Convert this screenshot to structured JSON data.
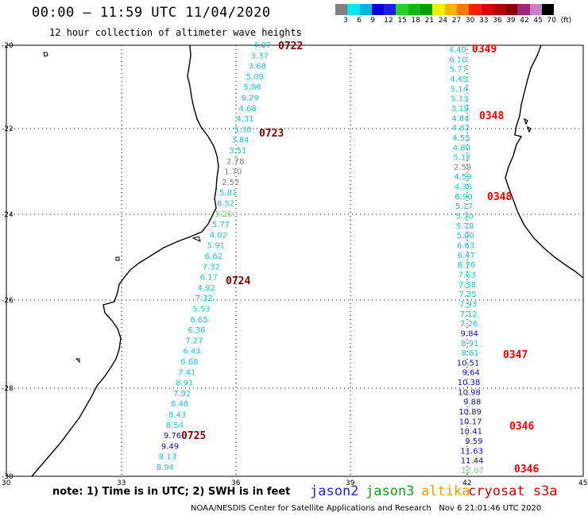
{
  "header": {
    "title": "00:00 — 11:59 UTC 11/04/2020",
    "subtitle": "12 hour collection of altimeter wave heights"
  },
  "color_scale": {
    "colors": [
      "#808080",
      "#00e5ff",
      "#00b4e6",
      "#0000e0",
      "#1e1ee6",
      "#22d322",
      "#12b812",
      "#00a000",
      "#f0f000",
      "#ffb400",
      "#ff7800",
      "#ff1e00",
      "#e00000",
      "#b40000",
      "#8c0000",
      "#a02878",
      "#c880c8",
      "#000000"
    ],
    "labels": [
      "3",
      "6",
      "9",
      "12",
      "15",
      "18",
      "21",
      "24",
      "27",
      "30",
      "33",
      "36",
      "39",
      "42",
      "45",
      "70",
      "(ft)"
    ]
  },
  "axes": {
    "lat_labels": [
      "-20",
      "-22",
      "-24",
      "-26",
      "-28",
      "-30"
    ],
    "lon_labels": [
      "30",
      "33",
      "36",
      "39",
      "42",
      "45"
    ]
  },
  "tracks": [
    {
      "values": [
        {
          "text": "4.07",
          "color": "#17c9e6"
        },
        {
          "text": "3.37",
          "color": "#17c9e6"
        },
        {
          "text": "3.68",
          "color": "#17c9e6"
        },
        {
          "text": "5.09",
          "color": "#17c9e6"
        },
        {
          "text": "5.86",
          "color": "#17c9e6"
        },
        {
          "text": "6.29",
          "color": "#17c9e6"
        },
        {
          "text": "4.68",
          "color": "#17c9e6"
        },
        {
          "text": "4.31",
          "color": "#17c9e6"
        },
        {
          "text": "5.30",
          "color": "#17c9e6"
        },
        {
          "text": "3.84",
          "color": "#17c9e6"
        },
        {
          "text": "3.51",
          "color": "#17c9e6"
        },
        {
          "text": "2.78",
          "color": "#808080"
        },
        {
          "text": "1.70",
          "color": "#808080"
        },
        {
          "text": "2.52",
          "color": "#808080"
        },
        {
          "text": "5.81",
          "color": "#17c9e6"
        },
        {
          "text": "8.52",
          "color": "#17c9e6"
        },
        {
          "text": "3.26",
          "color": "#6fdc6f"
        },
        {
          "text": "5.77",
          "color": "#17c9e6"
        },
        {
          "text": "4.02",
          "color": "#17c9e6"
        },
        {
          "text": "5.91",
          "color": "#17c9e6"
        },
        {
          "text": "6.62",
          "color": "#17c9e6"
        },
        {
          "text": "7.32",
          "color": "#17c9e6"
        },
        {
          "text": "6.17",
          "color": "#17c9e6"
        },
        {
          "text": "4.92",
          "color": "#17c9e6"
        },
        {
          "text": "7.32",
          "color": "#17c9e6"
        },
        {
          "text": "5.53",
          "color": "#17c9e6"
        },
        {
          "text": "6.65",
          "color": "#17c9e6"
        },
        {
          "text": "6.36",
          "color": "#17c9e6"
        },
        {
          "text": "7.27",
          "color": "#17c9e6"
        },
        {
          "text": "6.43",
          "color": "#17c9e6"
        },
        {
          "text": "6.68",
          "color": "#17c9e6"
        },
        {
          "text": "7.41",
          "color": "#17c9e6"
        },
        {
          "text": "8.91",
          "color": "#17c9e6"
        },
        {
          "text": "7.92",
          "color": "#17c9e6"
        },
        {
          "text": "8.48",
          "color": "#17c9e6"
        },
        {
          "text": "8.43",
          "color": "#17c9e6"
        },
        {
          "text": "8.54",
          "color": "#17c9e6"
        },
        {
          "text": "9.76",
          "color": "#1010c8"
        },
        {
          "text": "9.49",
          "color": "#1010c8"
        },
        {
          "text": "8.13",
          "color": "#17c9e6"
        },
        {
          "text": "8.94",
          "color": "#17c9e6"
        }
      ]
    },
    {
      "values": [
        {
          "text": "4.40",
          "color": "#17c9e6"
        },
        {
          "text": "6.10",
          "color": "#17c9e6"
        },
        {
          "text": "5.77",
          "color": "#17c9e6"
        },
        {
          "text": "4.45",
          "color": "#17c9e6"
        },
        {
          "text": "5.14",
          "color": "#17c9e6"
        },
        {
          "text": "5.13",
          "color": "#17c9e6"
        },
        {
          "text": "3.19",
          "color": "#17c9e6"
        },
        {
          "text": "4.84",
          "color": "#17c9e6"
        },
        {
          "text": "4.82",
          "color": "#17c9e6"
        },
        {
          "text": "4.55",
          "color": "#17c9e6"
        },
        {
          "text": "4.80",
          "color": "#17c9e6"
        },
        {
          "text": "5.12",
          "color": "#17c9e6"
        },
        {
          "text": "2.59",
          "color": "#808080"
        },
        {
          "text": "4.59",
          "color": "#17c9e6"
        },
        {
          "text": "4.36",
          "color": "#17c9e6"
        },
        {
          "text": "6.90",
          "color": "#17c9e6"
        },
        {
          "text": "5.17",
          "color": "#17c9e6"
        },
        {
          "text": "5.10",
          "color": "#17c9e6"
        },
        {
          "text": "5.78",
          "color": "#17c9e6"
        },
        {
          "text": "5.00",
          "color": "#17c9e6"
        },
        {
          "text": "6.63",
          "color": "#17c9e6"
        },
        {
          "text": "6.47",
          "color": "#17c9e6"
        },
        {
          "text": "6.76",
          "color": "#17c9e6"
        },
        {
          "text": "7.63",
          "color": "#17c9e6"
        },
        {
          "text": "7.38",
          "color": "#17c9e6"
        },
        {
          "text": "7.35",
          "color": "#17c9e6"
        },
        {
          "text": "7.93",
          "color": "#17c9e6"
        },
        {
          "text": "7.12",
          "color": "#17c9e6"
        },
        {
          "text": "7.26",
          "color": "#17c9e6"
        },
        {
          "text": "9.84",
          "color": "#1010c8"
        },
        {
          "text": "8.91",
          "color": "#17c9e6"
        },
        {
          "text": "8.61",
          "color": "#17c9e6"
        },
        {
          "text": "10.51",
          "color": "#1010c8"
        },
        {
          "text": "9.64",
          "color": "#1010c8"
        },
        {
          "text": "10.38",
          "color": "#1010c8"
        },
        {
          "text": "10.98",
          "color": "#1010c8"
        },
        {
          "text": "9.88",
          "color": "#1010c8"
        },
        {
          "text": "10.89",
          "color": "#1010c8"
        },
        {
          "text": "10.17",
          "color": "#1010c8"
        },
        {
          "text": "10.41",
          "color": "#1010c8"
        },
        {
          "text": "9.59",
          "color": "#1010c8"
        },
        {
          "text": "11.63",
          "color": "#1010c8"
        },
        {
          "text": "11.44",
          "color": "#1010c8"
        },
        {
          "text": "12.07",
          "color": "#6fdc6f"
        }
      ]
    }
  ],
  "time_labels": [
    {
      "text": "0722",
      "color": "#8b0000"
    },
    {
      "text": "0723",
      "color": "#8b0000"
    },
    {
      "text": "0724",
      "color": "#8b0000"
    },
    {
      "text": "0725",
      "color": "#8b0000"
    },
    {
      "text": "0349",
      "color": "#ff0000"
    },
    {
      "text": "0348",
      "color": "#ff0000"
    },
    {
      "text": "0348",
      "color": "#ff0000"
    },
    {
      "text": "0347",
      "color": "#ff0000"
    },
    {
      "text": "0346",
      "color": "#ff0000"
    },
    {
      "text": "0346",
      "color": "#ff0000"
    }
  ],
  "footer": {
    "note": "note: 1) Time is in UTC; 2) SWH is in feet",
    "legend": [
      {
        "name": "jason2",
        "color": "#1e1ee6"
      },
      {
        "name": "jason3",
        "color": "#12a012"
      },
      {
        "name": "altika",
        "color": "#ff9a00"
      },
      {
        "name": "cryosat s3a",
        "color": "#e00000"
      }
    ],
    "credit": "NOAA/NESDIS Center for Satellite Applications and Research",
    "timestamp": "Nov  6 21:01:46 UTC 2020"
  }
}
